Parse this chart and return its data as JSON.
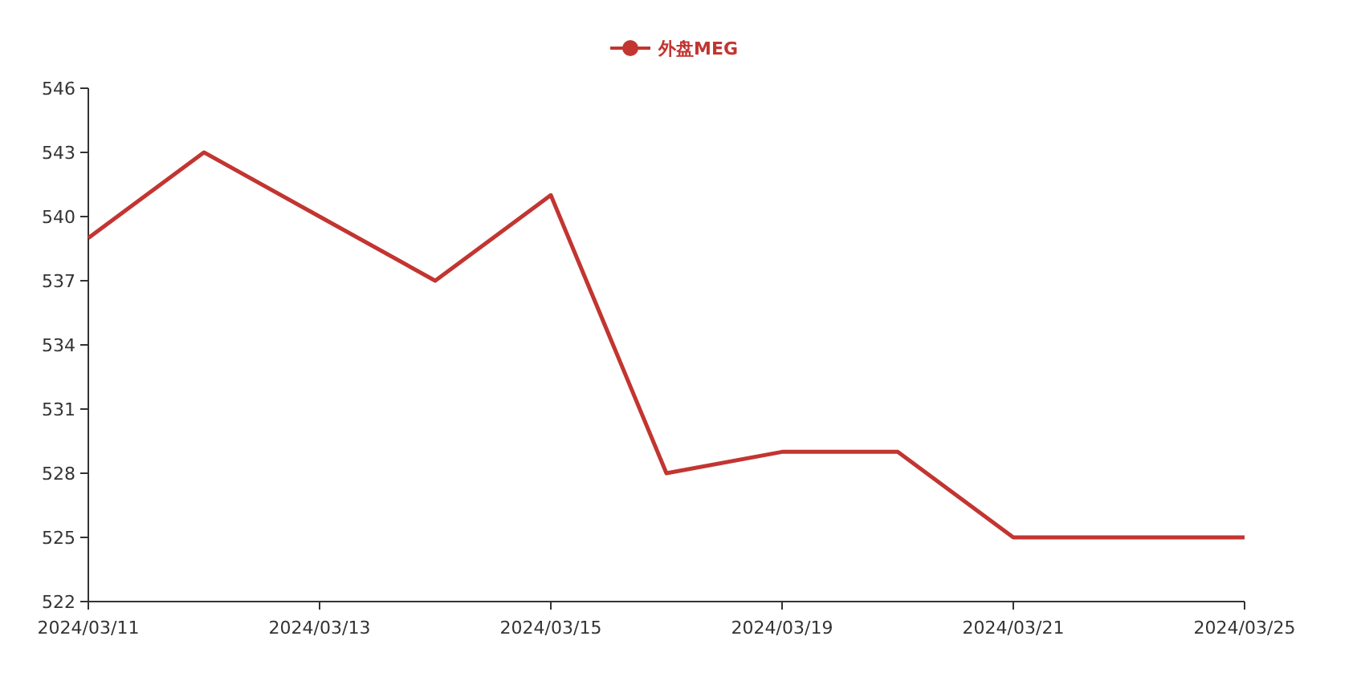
{
  "chart_data": {
    "type": "line",
    "categories": [
      "2024/03/11",
      null,
      "2024/03/13",
      null,
      "2024/03/15",
      null,
      "2024/03/19",
      null,
      "2024/03/21",
      null,
      "2024/03/25"
    ],
    "series": [
      {
        "name": "外盘MEG",
        "color": "#c23531",
        "values": [
          539,
          543,
          540,
          537,
          541,
          528,
          529,
          529,
          525,
          525,
          525
        ]
      }
    ],
    "ylim": [
      522,
      546
    ],
    "yticks": [
      522,
      525,
      528,
      531,
      534,
      537,
      540,
      543,
      546
    ],
    "grid": false,
    "legend": "top",
    "marker": "none",
    "line_style": "solid"
  }
}
